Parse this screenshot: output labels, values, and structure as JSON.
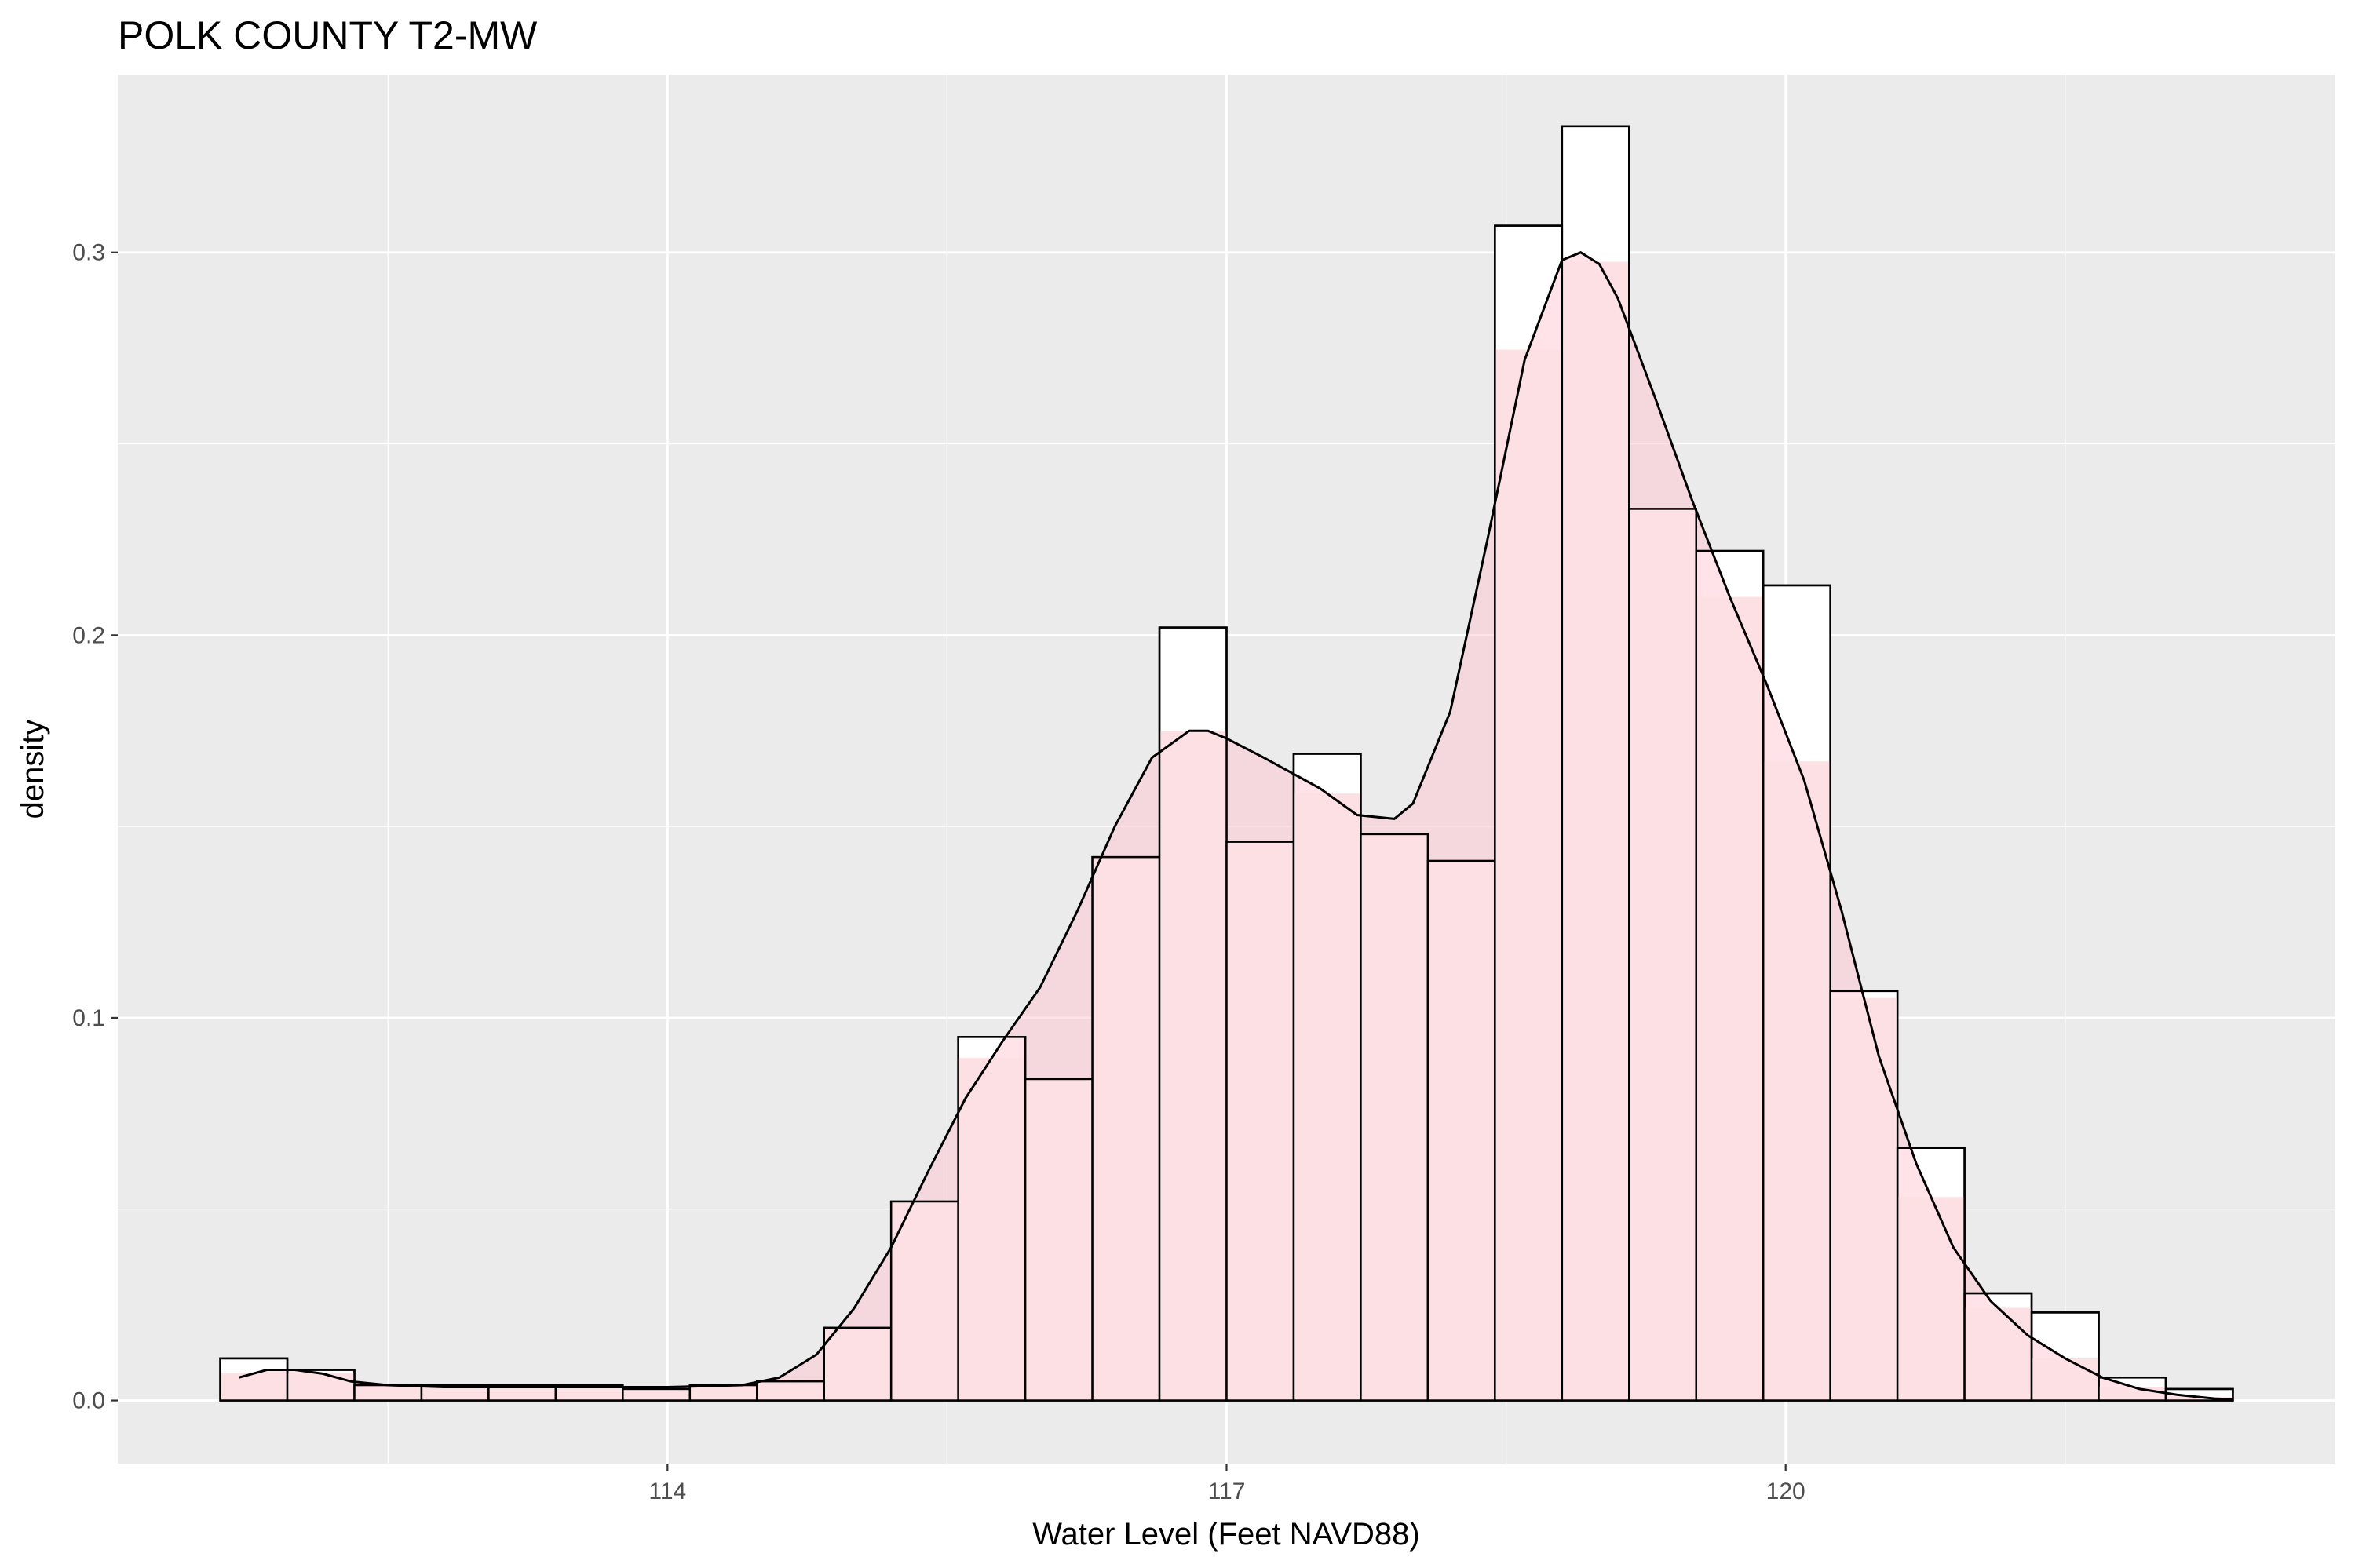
{
  "chart_data": {
    "type": "bar",
    "title": "POLK COUNTY T2-MW",
    "xlabel": "Water Level (Feet NAVD88)",
    "ylabel": "density",
    "xlim": [
      111.05,
      122.95
    ],
    "ylim": [
      -0.0165,
      0.3465
    ],
    "x_ticks": [
      114,
      117,
      120
    ],
    "x_tick_labels": [
      "114",
      "117",
      "120"
    ],
    "y_ticks": [
      0.0,
      0.1,
      0.2,
      0.3
    ],
    "y_tick_labels": [
      "0.0",
      "0.1",
      "0.2",
      "0.3"
    ],
    "grid": true,
    "background": "#ebebeb",
    "grid_color": "#ffffff",
    "histogram_series": {
      "fill": "#ffffff",
      "stroke": "#000000",
      "bins": [
        {
          "x0": 111.6,
          "x1": 111.96,
          "density": 0.011
        },
        {
          "x0": 111.96,
          "x1": 112.32,
          "density": 0.008
        },
        {
          "x0": 112.32,
          "x1": 112.68,
          "density": 0.004
        },
        {
          "x0": 112.68,
          "x1": 113.04,
          "density": 0.004
        },
        {
          "x0": 113.04,
          "x1": 113.4,
          "density": 0.004
        },
        {
          "x0": 113.4,
          "x1": 113.76,
          "density": 0.004
        },
        {
          "x0": 113.76,
          "x1": 114.12,
          "density": 0.003
        },
        {
          "x0": 114.12,
          "x1": 114.48,
          "density": 0.004
        },
        {
          "x0": 114.48,
          "x1": 114.84,
          "density": 0.005
        },
        {
          "x0": 114.84,
          "x1": 115.2,
          "density": 0.019
        },
        {
          "x0": 115.2,
          "x1": 115.56,
          "density": 0.052
        },
        {
          "x0": 115.56,
          "x1": 115.92,
          "density": 0.095
        },
        {
          "x0": 115.92,
          "x1": 116.28,
          "density": 0.084
        },
        {
          "x0": 116.28,
          "x1": 116.64,
          "density": 0.142
        },
        {
          "x0": 116.64,
          "x1": 117.0,
          "density": 0.202
        },
        {
          "x0": 117.0,
          "x1": 117.36,
          "density": 0.146
        },
        {
          "x0": 117.36,
          "x1": 117.72,
          "density": 0.169
        },
        {
          "x0": 117.72,
          "x1": 118.08,
          "density": 0.148
        },
        {
          "x0": 118.08,
          "x1": 118.44,
          "density": 0.141
        },
        {
          "x0": 118.44,
          "x1": 118.8,
          "density": 0.307
        },
        {
          "x0": 118.8,
          "x1": 119.16,
          "density": 0.333
        },
        {
          "x0": 119.16,
          "x1": 119.52,
          "density": 0.233
        },
        {
          "x0": 119.52,
          "x1": 119.88,
          "density": 0.222
        },
        {
          "x0": 119.88,
          "x1": 120.24,
          "density": 0.213
        },
        {
          "x0": 120.24,
          "x1": 120.6,
          "density": 0.107
        },
        {
          "x0": 120.6,
          "x1": 120.96,
          "density": 0.066
        },
        {
          "x0": 120.96,
          "x1": 121.32,
          "density": 0.028
        },
        {
          "x0": 121.32,
          "x1": 121.68,
          "density": 0.023
        },
        {
          "x0": 121.68,
          "x1": 122.04,
          "density": 0.006
        },
        {
          "x0": 122.04,
          "x1": 122.4,
          "density": 0.003
        }
      ]
    },
    "density_series": {
      "fill": "#ffc0cb",
      "fill_opacity": 0.45,
      "stroke": "#000000",
      "x": [
        111.7,
        111.85,
        112.0,
        112.15,
        112.3,
        112.5,
        112.8,
        113.2,
        113.6,
        114.0,
        114.4,
        114.6,
        114.8,
        115.0,
        115.2,
        115.4,
        115.6,
        115.8,
        116.0,
        116.2,
        116.4,
        116.6,
        116.8,
        116.9,
        117.0,
        117.2,
        117.5,
        117.7,
        117.9,
        118.0,
        118.2,
        118.4,
        118.6,
        118.8,
        118.9,
        119.0,
        119.1,
        119.3,
        119.5,
        119.7,
        119.9,
        120.1,
        120.3,
        120.5,
        120.7,
        120.9,
        121.1,
        121.3,
        121.5,
        121.7,
        121.9,
        122.1,
        122.3,
        122.4
      ],
      "y": [
        0.006,
        0.008,
        0.008,
        0.007,
        0.005,
        0.004,
        0.0035,
        0.0035,
        0.0035,
        0.0035,
        0.004,
        0.006,
        0.012,
        0.024,
        0.04,
        0.06,
        0.079,
        0.094,
        0.108,
        0.128,
        0.15,
        0.168,
        0.175,
        0.175,
        0.173,
        0.168,
        0.16,
        0.153,
        0.152,
        0.156,
        0.18,
        0.225,
        0.272,
        0.298,
        0.3,
        0.297,
        0.288,
        0.262,
        0.235,
        0.21,
        0.187,
        0.162,
        0.128,
        0.09,
        0.062,
        0.04,
        0.026,
        0.017,
        0.011,
        0.006,
        0.003,
        0.0015,
        0.0005,
        0.0003
      ]
    }
  }
}
